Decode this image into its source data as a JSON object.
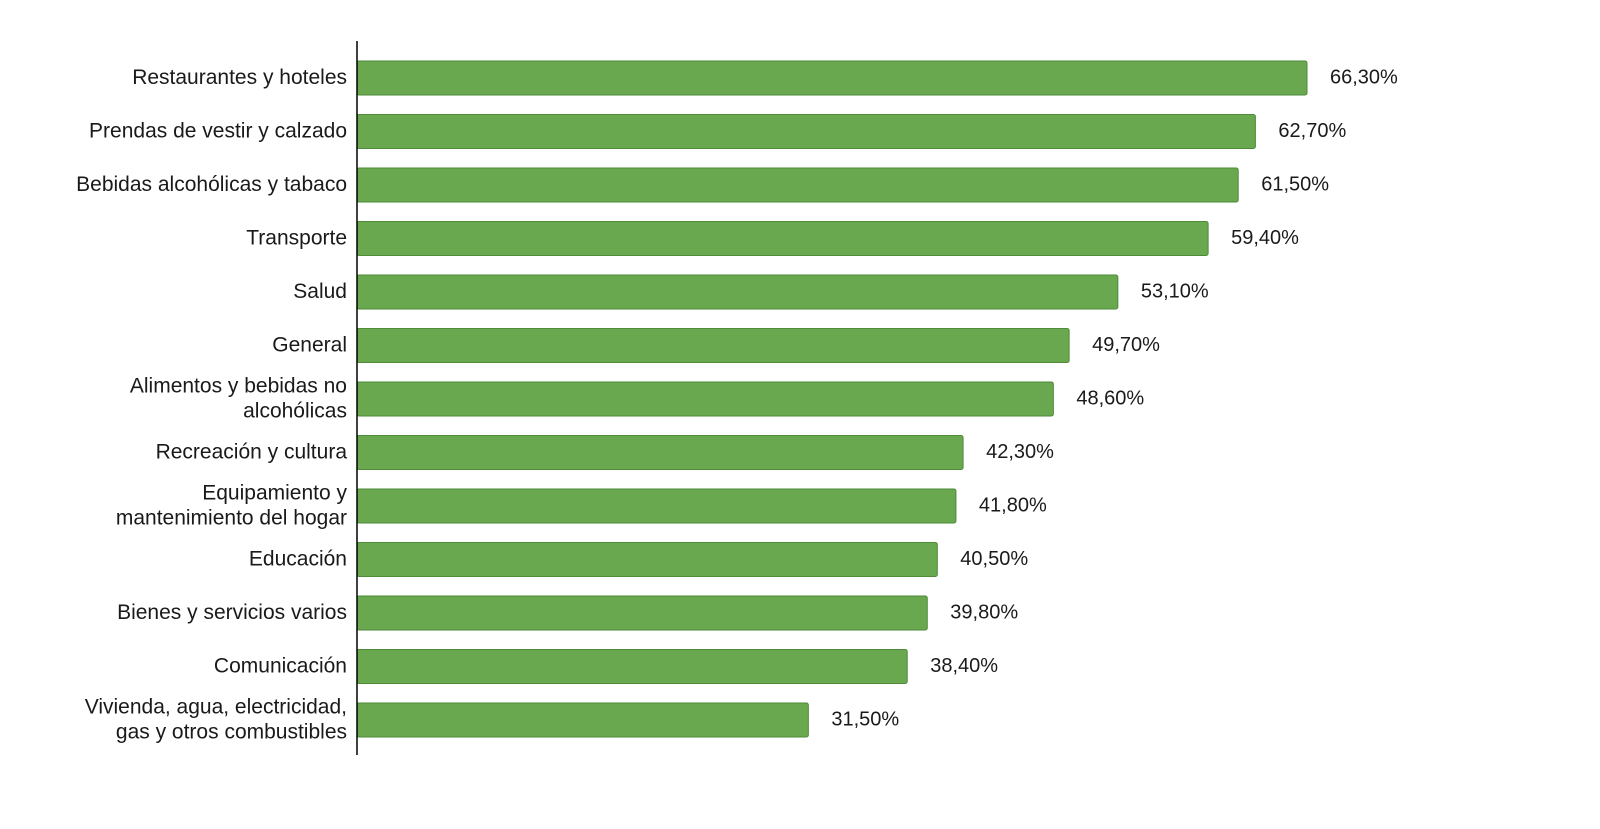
{
  "chart_data": {
    "type": "bar",
    "orientation": "horizontal",
    "categories": [
      "Restaurantes y hoteles",
      "Prendas de vestir y calzado",
      "Bebidas alcohólicas y tabaco",
      "Transporte",
      "Salud",
      "General",
      "Alimentos y bebidas no alcohólicas",
      "Recreación y cultura",
      "Equipamiento y mantenimiento del hogar",
      "Educación",
      "Bienes y servicios varios",
      "Comunicación",
      "Vivienda, agua, electricidad, gas y otros combustibles"
    ],
    "category_lines": [
      [
        "Restaurantes y hoteles"
      ],
      [
        "Prendas de vestir y calzado"
      ],
      [
        "Bebidas alcohólicas y tabaco"
      ],
      [
        "Transporte"
      ],
      [
        "Salud"
      ],
      [
        "General"
      ],
      [
        "Alimentos y bebidas no",
        "alcohólicas"
      ],
      [
        "Recreación y cultura"
      ],
      [
        "Equipamiento y",
        "mantenimiento del hogar"
      ],
      [
        "Educación"
      ],
      [
        "Bienes y servicios varios"
      ],
      [
        "Comunicación"
      ],
      [
        "Vivienda, agua, electricidad,",
        "gas y otros combustibles"
      ]
    ],
    "values": [
      66.3,
      62.7,
      61.5,
      59.4,
      53.1,
      49.7,
      48.6,
      42.3,
      41.8,
      40.5,
      39.8,
      38.4,
      31.5
    ],
    "value_labels": [
      "66,30%",
      "62,70%",
      "61,50%",
      "59,40%",
      "53,10%",
      "49,70%",
      "48,60%",
      "42,30%",
      "41,80%",
      "40,50%",
      "39,80%",
      "38,40%",
      "31,50%"
    ],
    "title": "",
    "xlabel": "",
    "ylabel": "",
    "xlim": [
      0,
      70
    ],
    "grid": false,
    "legend": "none",
    "bar_color": "#6aa84f",
    "bar_edge_color": "#4e8a38"
  }
}
